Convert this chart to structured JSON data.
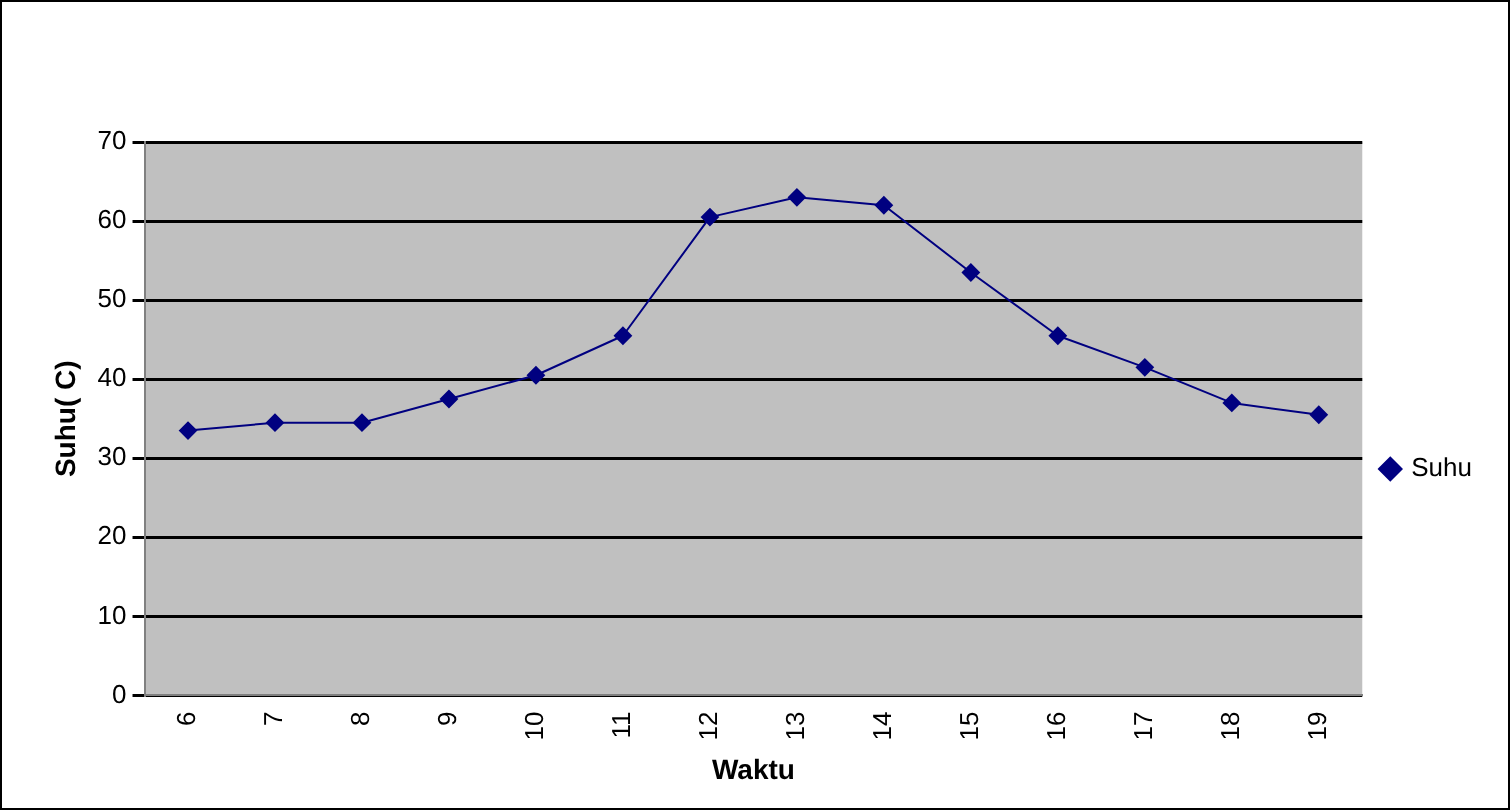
{
  "chart_data": {
    "type": "line",
    "xlabel": "Waktu",
    "ylabel": "Suhu( C)",
    "categories": [
      "6",
      "7",
      "8",
      "9",
      "10",
      "11",
      "12",
      "13",
      "14",
      "15",
      "16",
      "17",
      "18",
      "19"
    ],
    "series": [
      {
        "name": "Suhu",
        "color": "#000080",
        "values": [
          33.5,
          34.5,
          34.5,
          37.5,
          40.5,
          45.5,
          60.5,
          63,
          62,
          53.5,
          45.5,
          41.5,
          37,
          35.5
        ]
      }
    ],
    "ylim": [
      0,
      70
    ],
    "yticks": [
      0,
      10,
      20,
      30,
      40,
      50,
      60,
      70
    ],
    "grid": "y",
    "legend": "right",
    "marker": "diamond",
    "line_style": "solid"
  }
}
